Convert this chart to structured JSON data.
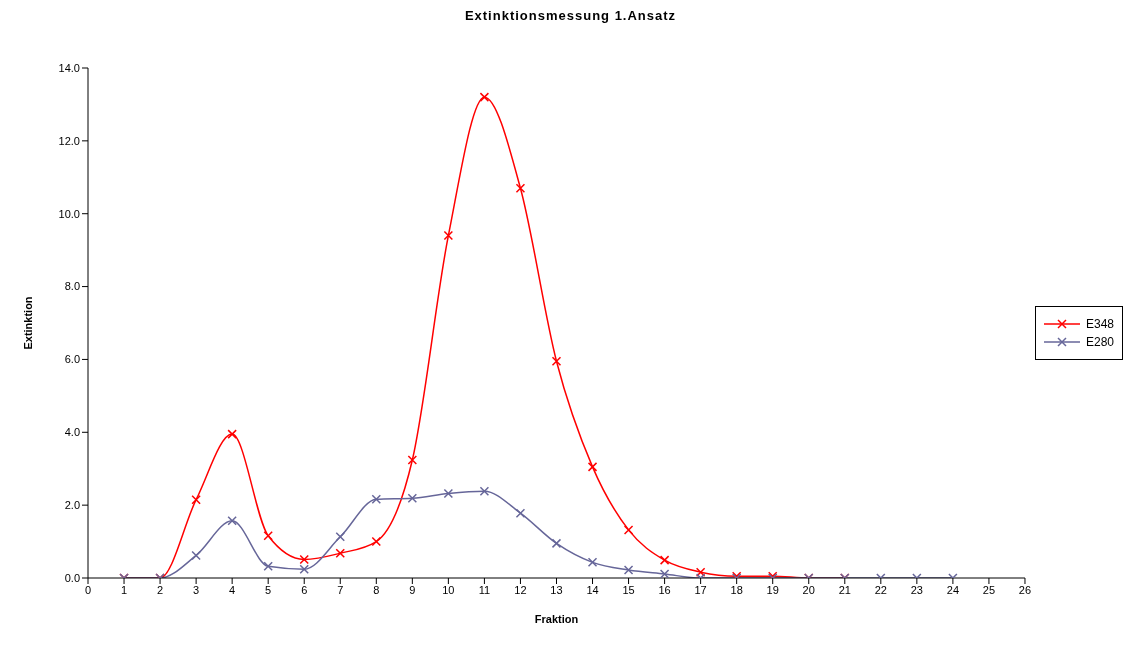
{
  "chart_data": {
    "type": "line",
    "title": "Extinktionsmessung 1.Ansatz",
    "xlabel": "Fraktion",
    "ylabel": "Extinktion",
    "x": [
      1,
      2,
      3,
      4,
      5,
      6,
      7,
      8,
      9,
      10,
      11,
      12,
      13,
      14,
      15,
      16,
      17,
      18,
      19,
      20,
      21,
      22,
      23,
      24
    ],
    "series": [
      {
        "name": "E348",
        "color": "#ff0000",
        "values": [
          0,
          0,
          2.15,
          3.95,
          1.16,
          0.51,
          0.68,
          1.0,
          3.24,
          9.4,
          13.2,
          10.7,
          5.95,
          3.05,
          1.32,
          0.49,
          0.16,
          0.05,
          0.05,
          0,
          0,
          null,
          null,
          null
        ]
      },
      {
        "name": "E280",
        "color": "#666699",
        "values": [
          0,
          0,
          0.62,
          1.57,
          0.32,
          0.24,
          1.13,
          2.16,
          2.19,
          2.32,
          2.38,
          1.78,
          0.95,
          0.43,
          0.22,
          0.11,
          0,
          0,
          0,
          0,
          0,
          0,
          0,
          0
        ]
      }
    ],
    "xlim": [
      0,
      26
    ],
    "xticks": [
      0,
      1,
      2,
      3,
      4,
      5,
      6,
      7,
      8,
      9,
      10,
      11,
      12,
      13,
      14,
      15,
      16,
      17,
      18,
      19,
      20,
      21,
      22,
      23,
      24,
      25,
      26
    ],
    "ylim": [
      0,
      14
    ],
    "yticks": [
      {
        "value": 0,
        "label": "0.0"
      },
      {
        "value": 2,
        "label": "2.0"
      },
      {
        "value": 4,
        "label": "4.0"
      },
      {
        "value": 6,
        "label": "6.0"
      },
      {
        "value": 8,
        "label": "8.0"
      },
      {
        "value": 10,
        "label": "10.0"
      },
      {
        "value": 12,
        "label": "12.0"
      },
      {
        "value": 14,
        "label": "14.0"
      }
    ],
    "legend": "right",
    "marker": "cross",
    "line_style": "solid"
  }
}
